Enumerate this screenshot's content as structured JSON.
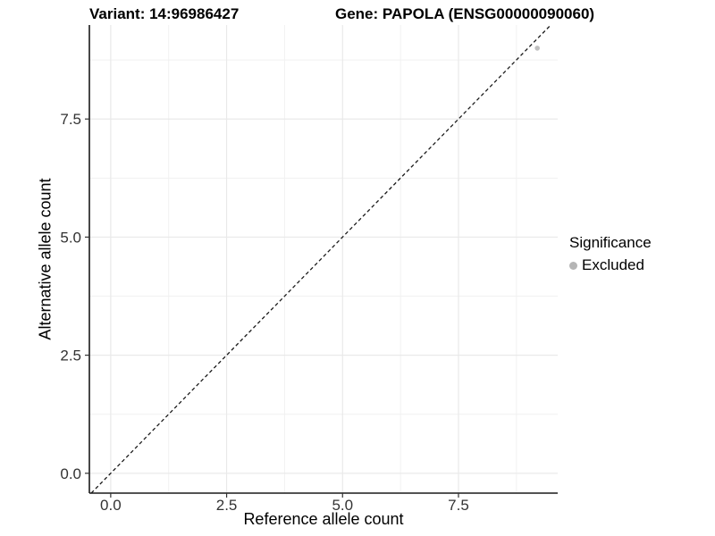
{
  "chart_data": {
    "type": "scatter",
    "title_left": "Variant: 14:96986427",
    "title_right": "Gene: PAPOLA (ENSG00000090060)",
    "xlabel": "Reference allele count",
    "ylabel": "Alternative allele count",
    "x_tick_values": [
      0,
      2.5,
      5,
      7.5
    ],
    "x_tick_labels": [
      "0.0",
      "2.5",
      "5.0",
      "7.5"
    ],
    "y_tick_values": [
      0,
      2.5,
      5,
      7.5
    ],
    "y_tick_labels": [
      "0.0",
      "2.5",
      "5.0",
      "7.5"
    ],
    "minor_tick_values": [
      1.25,
      3.75,
      6.25,
      8.75
    ],
    "xlim": [
      -0.46,
      9.64
    ],
    "ylim": [
      -0.42,
      9.49
    ],
    "grid": true,
    "reference_line": {
      "slope": 1,
      "intercept": 0,
      "linetype": "dashed",
      "color": "#1a1a1a"
    },
    "series": [
      {
        "name": "Excluded",
        "color": "#bfbfbf",
        "marker": "circle",
        "points": [
          {
            "x": 9.2,
            "y": 9.0
          }
        ]
      }
    ],
    "legend": {
      "title": "Significance",
      "position": "right",
      "items": [
        {
          "label": "Excluded",
          "color": "#b5b5b5"
        }
      ]
    },
    "colors": {
      "grid_major": "#e9e9e9",
      "grid_minor": "#f1f1f1",
      "axis_line": "#1a1a1a",
      "tick_mark": "#333333",
      "tick_text": "#333333"
    }
  }
}
